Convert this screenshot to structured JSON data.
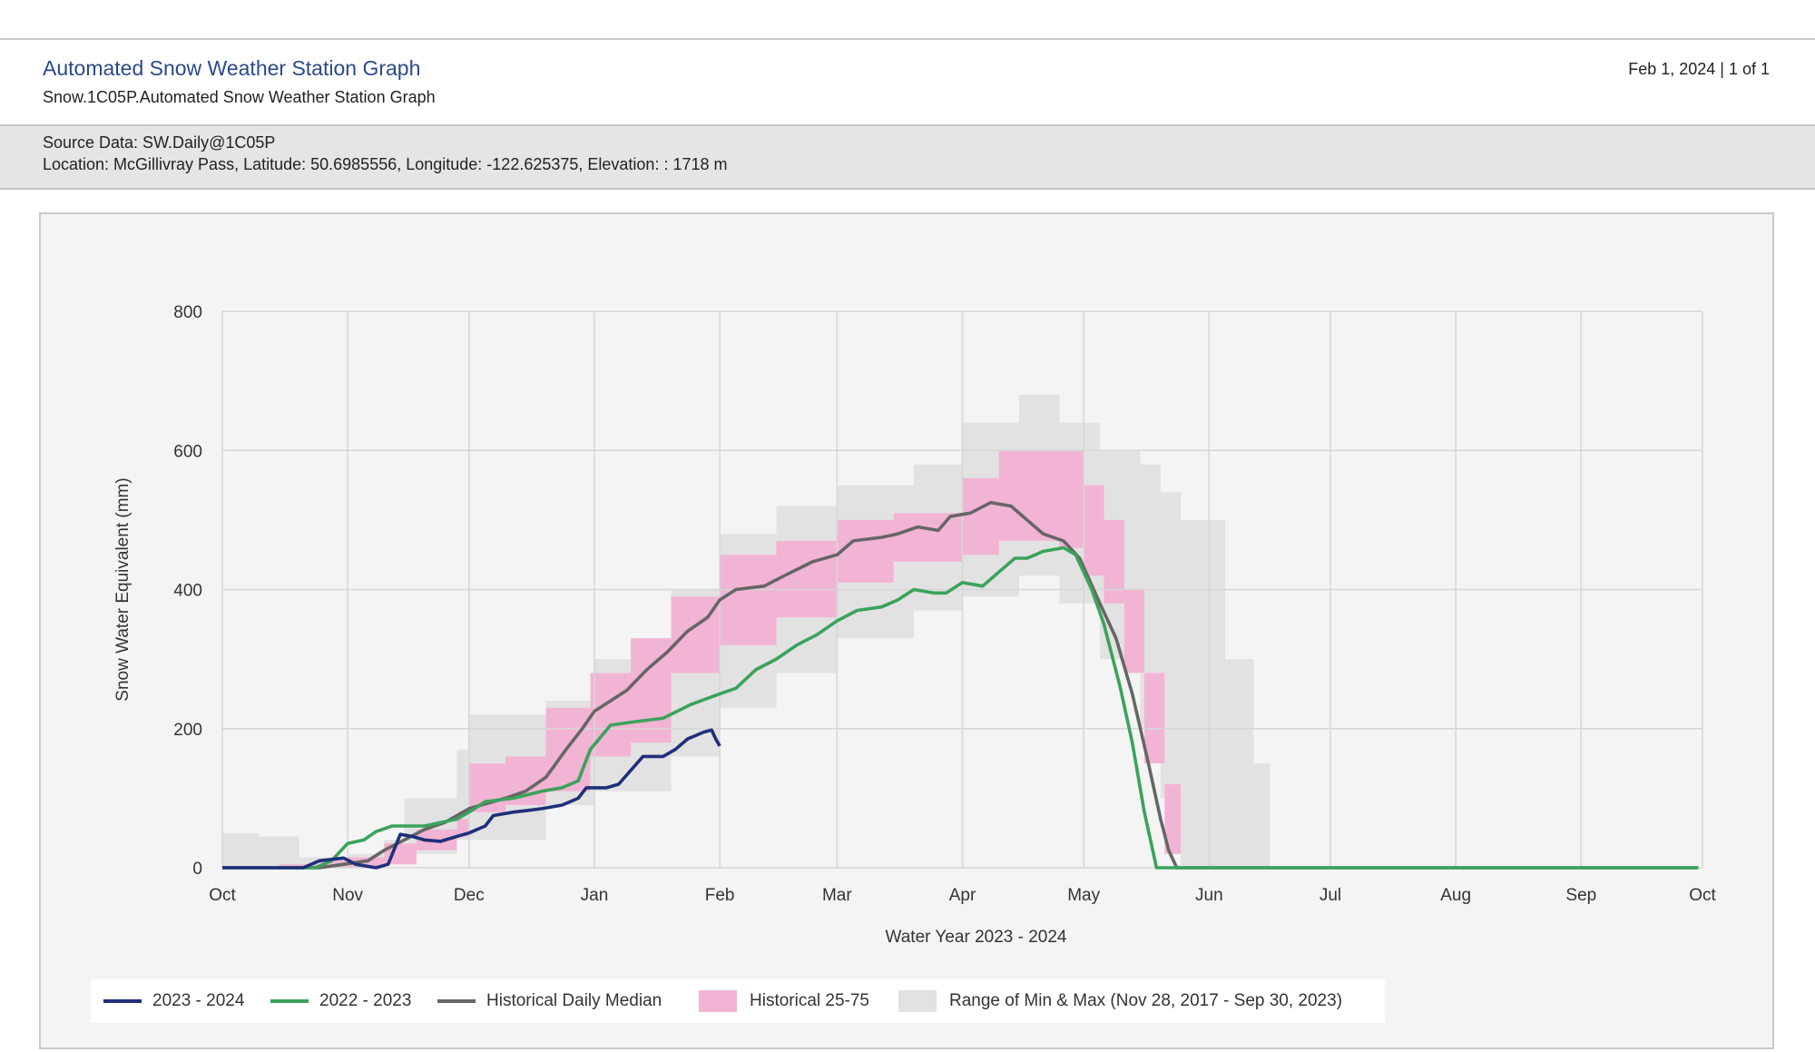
{
  "header": {
    "title": "Automated Snow Weather Station Graph",
    "subtitle": "Snow.1C05P.Automated Snow Weather Station Graph",
    "page_info": "Feb 1, 2024 | 1 of 1"
  },
  "info": {
    "source": "Source Data: SW.Daily@1C05P",
    "location": "Location: McGillivray Pass, Latitude: 50.6985556, Longitude: -122.625375, Elevation: : 1718 m"
  },
  "colors": {
    "current": "#1f2f7a",
    "previous": "#3aa35a",
    "median": "#666666",
    "band_25_75": "#f2b4d4",
    "band_minmax": "#e2e2e2"
  },
  "chart_data": {
    "type": "line",
    "title": "",
    "xlabel": "Water Year 2023 - 2024",
    "ylabel": "Snow Water Equivalent (mm)",
    "ylim": [
      0,
      800
    ],
    "yticks": [
      0,
      200,
      400,
      600,
      800
    ],
    "xlim": [
      "2023-10-01",
      "2024-09-30"
    ],
    "xticks": [
      {
        "label": "Oct",
        "date": "2023-10-01"
      },
      {
        "label": "Nov",
        "date": "2023-11-01"
      },
      {
        "label": "Dec",
        "date": "2023-12-01"
      },
      {
        "label": "Jan",
        "date": "2024-01-01"
      },
      {
        "label": "Feb",
        "date": "2024-02-01"
      },
      {
        "label": "Mar",
        "date": "2024-03-01"
      },
      {
        "label": "Apr",
        "date": "2024-04-01"
      },
      {
        "label": "May",
        "date": "2024-05-01"
      },
      {
        "label": "Jun",
        "date": "2024-06-01"
      },
      {
        "label": "Jul",
        "date": "2024-07-01"
      },
      {
        "label": "Aug",
        "date": "2024-08-01"
      },
      {
        "label": "Sep",
        "date": "2024-09-01"
      },
      {
        "label": "Oct",
        "date": "2024-10-01"
      }
    ],
    "grid": true,
    "legend_position": "bottom",
    "series": [
      {
        "name": "2023 - 2024",
        "kind": "line",
        "points": [
          [
            "2023-10-01",
            0
          ],
          [
            "2023-10-21",
            0
          ],
          [
            "2023-10-25",
            10
          ],
          [
            "2023-10-31",
            14
          ],
          [
            "2023-11-03",
            5
          ],
          [
            "2023-11-06",
            2
          ],
          [
            "2023-11-08",
            0
          ],
          [
            "2023-11-11",
            5
          ],
          [
            "2023-11-14",
            48
          ],
          [
            "2023-11-17",
            45
          ],
          [
            "2023-11-20",
            40
          ],
          [
            "2023-11-24",
            38
          ],
          [
            "2023-11-28",
            45
          ],
          [
            "2023-12-01",
            50
          ],
          [
            "2023-12-05",
            60
          ],
          [
            "2023-12-07",
            75
          ],
          [
            "2023-12-12",
            80
          ],
          [
            "2023-12-15",
            82
          ],
          [
            "2023-12-19",
            85
          ],
          [
            "2023-12-24",
            90
          ],
          [
            "2023-12-28",
            100
          ],
          [
            "2023-12-30",
            115
          ],
          [
            "2024-01-04",
            115
          ],
          [
            "2024-01-07",
            120
          ],
          [
            "2024-01-10",
            140
          ],
          [
            "2024-01-13",
            160
          ],
          [
            "2024-01-18",
            160
          ],
          [
            "2024-01-21",
            170
          ],
          [
            "2024-01-24",
            185
          ],
          [
            "2024-01-28",
            195
          ],
          [
            "2024-01-30",
            198
          ],
          [
            "2024-01-31",
            185
          ],
          [
            "2024-02-01",
            175
          ]
        ]
      },
      {
        "name": "2022 - 2023",
        "kind": "line",
        "points": [
          [
            "2023-10-01",
            0
          ],
          [
            "2023-10-24",
            0
          ],
          [
            "2023-10-28",
            10
          ],
          [
            "2023-11-01",
            35
          ],
          [
            "2023-11-05",
            40
          ],
          [
            "2023-11-08",
            52
          ],
          [
            "2023-11-12",
            60
          ],
          [
            "2023-11-20",
            60
          ],
          [
            "2023-11-28",
            70
          ],
          [
            "2023-12-01",
            80
          ],
          [
            "2023-12-05",
            95
          ],
          [
            "2023-12-12",
            100
          ],
          [
            "2023-12-19",
            110
          ],
          [
            "2023-12-24",
            115
          ],
          [
            "2023-12-28",
            125
          ],
          [
            "2023-12-31",
            170
          ],
          [
            "2024-01-05",
            205
          ],
          [
            "2024-01-11",
            210
          ],
          [
            "2024-01-18",
            215
          ],
          [
            "2024-01-25",
            235
          ],
          [
            "2024-02-01",
            250
          ],
          [
            "2024-02-05",
            258
          ],
          [
            "2024-02-10",
            285
          ],
          [
            "2024-02-15",
            300
          ],
          [
            "2024-02-20",
            320
          ],
          [
            "2024-02-25",
            335
          ],
          [
            "2024-03-01",
            355
          ],
          [
            "2024-03-06",
            370
          ],
          [
            "2024-03-12",
            375
          ],
          [
            "2024-03-16",
            385
          ],
          [
            "2024-03-20",
            400
          ],
          [
            "2024-03-25",
            395
          ],
          [
            "2024-03-28",
            395
          ],
          [
            "2024-04-01",
            410
          ],
          [
            "2024-04-06",
            405
          ],
          [
            "2024-04-10",
            425
          ],
          [
            "2024-04-14",
            445
          ],
          [
            "2024-04-17",
            445
          ],
          [
            "2024-04-21",
            455
          ],
          [
            "2024-04-26",
            460
          ],
          [
            "2024-04-29",
            450
          ],
          [
            "2024-05-03",
            400
          ],
          [
            "2024-05-06",
            350
          ],
          [
            "2024-05-10",
            260
          ],
          [
            "2024-05-13",
            180
          ],
          [
            "2024-05-16",
            80
          ],
          [
            "2024-05-19",
            0
          ],
          [
            "2024-09-30",
            0
          ]
        ]
      },
      {
        "name": "Historical Daily Median",
        "kind": "line",
        "points": [
          [
            "2023-10-01",
            0
          ],
          [
            "2023-10-25",
            0
          ],
          [
            "2023-10-31",
            5
          ],
          [
            "2023-11-06",
            10
          ],
          [
            "2023-11-10",
            25
          ],
          [
            "2023-11-15",
            40
          ],
          [
            "2023-11-20",
            55
          ],
          [
            "2023-11-25",
            65
          ],
          [
            "2023-12-01",
            85
          ],
          [
            "2023-12-10",
            100
          ],
          [
            "2023-12-15",
            110
          ],
          [
            "2023-12-20",
            130
          ],
          [
            "2023-12-25",
            170
          ],
          [
            "2023-12-29",
            200
          ],
          [
            "2024-01-01",
            225
          ],
          [
            "2024-01-05",
            240
          ],
          [
            "2024-01-09",
            255
          ],
          [
            "2024-01-14",
            285
          ],
          [
            "2024-01-19",
            310
          ],
          [
            "2024-01-24",
            340
          ],
          [
            "2024-01-29",
            360
          ],
          [
            "2024-02-01",
            385
          ],
          [
            "2024-02-05",
            400
          ],
          [
            "2024-02-12",
            405
          ],
          [
            "2024-02-17",
            420
          ],
          [
            "2024-02-24",
            440
          ],
          [
            "2024-03-01",
            450
          ],
          [
            "2024-03-05",
            470
          ],
          [
            "2024-03-12",
            475
          ],
          [
            "2024-03-16",
            480
          ],
          [
            "2024-03-21",
            490
          ],
          [
            "2024-03-26",
            485
          ],
          [
            "2024-03-29",
            505
          ],
          [
            "2024-04-03",
            510
          ],
          [
            "2024-04-08",
            525
          ],
          [
            "2024-04-13",
            520
          ],
          [
            "2024-04-17",
            500
          ],
          [
            "2024-04-21",
            480
          ],
          [
            "2024-04-26",
            470
          ],
          [
            "2024-04-30",
            445
          ],
          [
            "2024-05-05",
            380
          ],
          [
            "2024-05-09",
            330
          ],
          [
            "2024-05-13",
            250
          ],
          [
            "2024-05-17",
            150
          ],
          [
            "2024-05-20",
            70
          ],
          [
            "2024-05-22",
            25
          ],
          [
            "2024-05-24",
            0
          ],
          [
            "2024-09-30",
            0
          ]
        ]
      },
      {
        "name": "Historical 25-75",
        "kind": "band",
        "points": [
          [
            "2023-10-01",
            0,
            0
          ],
          [
            "2023-10-15",
            0,
            5
          ],
          [
            "2023-10-25",
            0,
            10
          ],
          [
            "2023-11-01",
            0,
            15
          ],
          [
            "2023-11-10",
            5,
            35
          ],
          [
            "2023-11-18",
            25,
            55
          ],
          [
            "2023-11-28",
            45,
            70
          ],
          [
            "2023-12-01",
            80,
            150
          ],
          [
            "2023-12-10",
            90,
            160
          ],
          [
            "2023-12-20",
            110,
            230
          ],
          [
            "2023-12-31",
            160,
            280
          ],
          [
            "2024-01-10",
            180,
            330
          ],
          [
            "2024-01-20",
            280,
            390
          ],
          [
            "2024-02-01",
            320,
            450
          ],
          [
            "2024-02-15",
            360,
            470
          ],
          [
            "2024-03-01",
            410,
            500
          ],
          [
            "2024-03-15",
            440,
            510
          ],
          [
            "2024-04-01",
            450,
            560
          ],
          [
            "2024-04-10",
            470,
            600
          ],
          [
            "2024-04-25",
            460,
            600
          ],
          [
            "2024-05-01",
            420,
            550
          ],
          [
            "2024-05-06",
            380,
            500
          ],
          [
            "2024-05-11",
            280,
            400
          ],
          [
            "2024-05-16",
            150,
            280
          ],
          [
            "2024-05-21",
            20,
            120
          ],
          [
            "2024-05-25",
            0,
            0
          ],
          [
            "2024-09-30",
            0,
            0
          ]
        ]
      },
      {
        "name": "Range of Min & Max (Nov 28, 2017 - Sep 30, 2023)",
        "kind": "band",
        "points": [
          [
            "2023-10-01",
            0,
            50
          ],
          [
            "2023-10-10",
            0,
            45
          ],
          [
            "2023-10-20",
            0,
            15
          ],
          [
            "2023-11-01",
            0,
            20
          ],
          [
            "2023-11-10",
            10,
            40
          ],
          [
            "2023-11-15",
            20,
            100
          ],
          [
            "2023-11-28",
            40,
            170
          ],
          [
            "2023-12-01",
            40,
            220
          ],
          [
            "2023-12-20",
            90,
            240
          ],
          [
            "2024-01-01",
            110,
            300
          ],
          [
            "2024-01-20",
            160,
            400
          ],
          [
            "2024-02-01",
            230,
            480
          ],
          [
            "2024-02-15",
            280,
            520
          ],
          [
            "2024-03-01",
            330,
            550
          ],
          [
            "2024-03-20",
            370,
            580
          ],
          [
            "2024-04-01",
            390,
            640
          ],
          [
            "2024-04-15",
            420,
            680
          ],
          [
            "2024-04-25",
            380,
            640
          ],
          [
            "2024-05-05",
            300,
            600
          ],
          [
            "2024-05-15",
            200,
            580
          ],
          [
            "2024-05-20",
            100,
            540
          ],
          [
            "2024-05-25",
            0,
            500
          ],
          [
            "2024-06-05",
            0,
            300
          ],
          [
            "2024-06-12",
            0,
            150
          ],
          [
            "2024-06-16",
            0,
            0
          ],
          [
            "2024-09-27",
            0,
            0
          ],
          [
            "2024-09-30",
            0,
            12
          ]
        ]
      }
    ]
  }
}
